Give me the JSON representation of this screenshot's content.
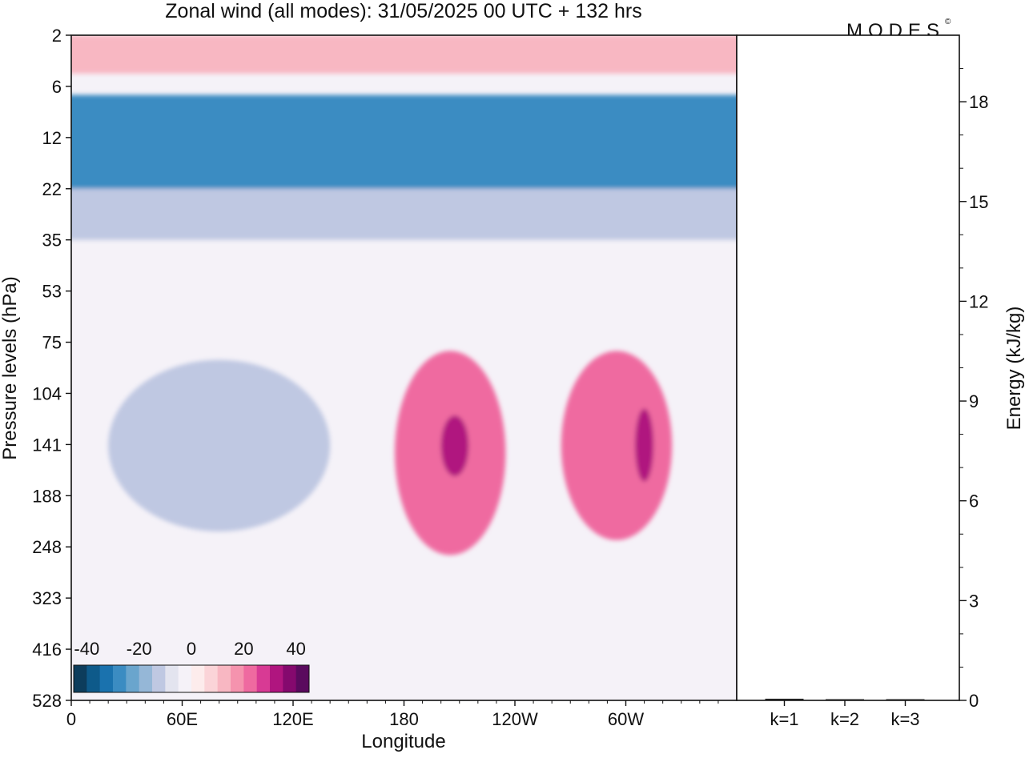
{
  "title": "Zonal wind (all modes):  31/05/2025  00 UTC  + 132 hrs",
  "logo_text": "MODES",
  "logo_mark": "©",
  "chart_data": [
    {
      "type": "heatmap",
      "title": "Zonal wind (all modes):  31/05/2025  00 UTC  + 132 hrs",
      "xlabel": "Longitude",
      "ylabel": "Pressure levels (hPa)",
      "x_ticks": [
        "0",
        "60E",
        "120E",
        "180",
        "120W",
        "60W"
      ],
      "x_tick_degrees": [
        0,
        60,
        120,
        180,
        240,
        300
      ],
      "xlim": [
        0,
        360
      ],
      "y_ticks": [
        "2",
        "6",
        "12",
        "22",
        "35",
        "53",
        "75",
        "104",
        "141",
        "188",
        "248",
        "323",
        "416",
        "528"
      ],
      "y_scale": "pressure levels (top 2 hPa, bottom 528 hPa)",
      "colorbar": {
        "tick_labels": [
          "-40",
          "-20",
          "0",
          "20",
          "40"
        ],
        "min": -45,
        "max": 45,
        "step": 5,
        "colors": [
          "#0d3d5c",
          "#0e5a8a",
          "#1a72ae",
          "#3b8cc2",
          "#6aa5cd",
          "#95b7d7",
          "#bfc8e2",
          "#e3e4ef",
          "#f5f2f8",
          "#fdecec",
          "#fbd4d8",
          "#f8b7c2",
          "#f593ae",
          "#ef6aa0",
          "#d83a94",
          "#b0157f",
          "#85096e",
          "#5a0a5e"
        ]
      },
      "features": [
        {
          "lon": [
            0,
            360
          ],
          "p": [
            7,
            22
          ],
          "value": -30
        },
        {
          "lon": [
            0,
            360
          ],
          "p": [
            22,
            35
          ],
          "value": -15
        },
        {
          "lon": [
            0,
            360
          ],
          "p": [
            2,
            5
          ],
          "value": 10
        },
        {
          "lon": [
            20,
            140
          ],
          "p": [
            85,
            230
          ],
          "value": -15
        },
        {
          "lon": [
            175,
            235
          ],
          "p": [
            80,
            260
          ],
          "value": 20
        },
        {
          "lon": [
            265,
            325
          ],
          "p": [
            80,
            240
          ],
          "value": 20
        },
        {
          "lon": [
            200,
            215
          ],
          "p": [
            120,
            170
          ],
          "value": 30
        },
        {
          "lon": [
            305,
            315
          ],
          "p": [
            115,
            175
          ],
          "value": 30
        }
      ]
    },
    {
      "type": "bar",
      "ylabel": "Energy (kJ/kg)",
      "categories": [
        "k=1",
        "k=2",
        "k=3"
      ],
      "values": [
        0.05,
        0.02,
        0.01
      ],
      "y_ticks": [
        "0",
        "3",
        "6",
        "9",
        "12",
        "15",
        "18"
      ],
      "ylim": [
        0,
        20
      ]
    }
  ]
}
